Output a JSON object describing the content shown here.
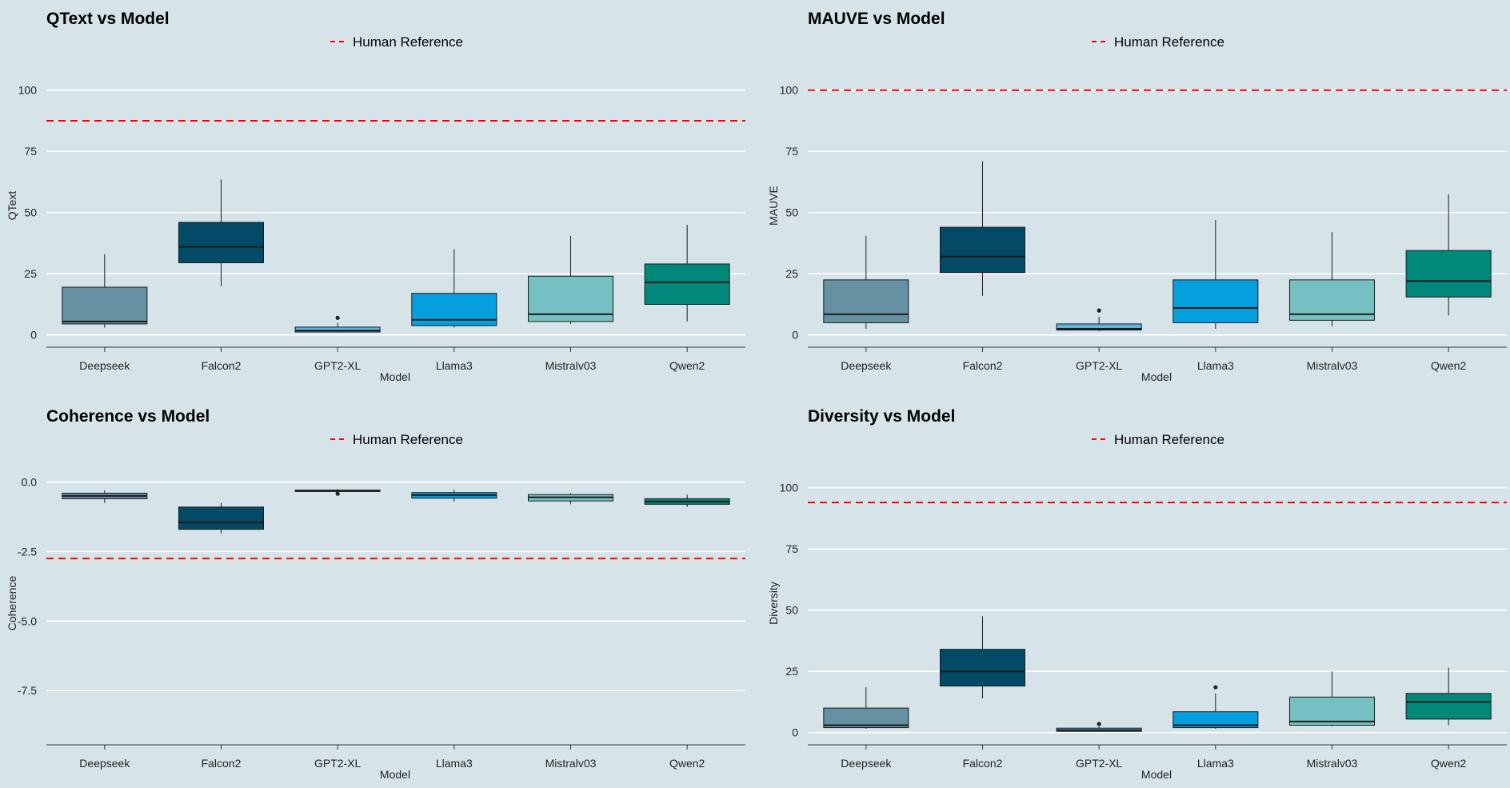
{
  "chart_data": [
    {
      "type": "box",
      "title": "QText vs Model",
      "xlabel": "Model",
      "ylabel": "QText",
      "legend": "Human Reference",
      "reference": 87.5,
      "yticks": [
        0,
        25,
        50,
        75,
        100
      ],
      "ytick_labels": [
        "0",
        "25",
        "50",
        "75",
        "100"
      ],
      "ylim": [
        -5,
        112
      ],
      "categories": [
        "Deepseek",
        "Falcon2",
        "GPT2-XL",
        "Llama3",
        "Mistralv03",
        "Qwen2"
      ],
      "boxes": [
        {
          "min": 3,
          "q1": 4.5,
          "median": 5.5,
          "q3": 19.5,
          "max": 33,
          "outliers": []
        },
        {
          "min": 20,
          "q1": 29.5,
          "median": 36,
          "q3": 46,
          "max": 63.5,
          "outliers": []
        },
        {
          "min": 1,
          "q1": 1.2,
          "median": 1.8,
          "q3": 3.2,
          "max": 5,
          "outliers": [
            7
          ]
        },
        {
          "min": 3,
          "q1": 3.8,
          "median": 6.2,
          "q3": 17,
          "max": 35,
          "outliers": []
        },
        {
          "min": 4.5,
          "q1": 5.5,
          "median": 8.5,
          "q3": 24,
          "max": 40.5,
          "outliers": []
        },
        {
          "min": 5.5,
          "q1": 12.5,
          "median": 21.5,
          "q3": 29,
          "max": 45,
          "outliers": []
        }
      ]
    },
    {
      "type": "box",
      "title": "MAUVE vs Model",
      "xlabel": "Model",
      "ylabel": "MAUVE",
      "legend": "Human Reference",
      "reference": 100,
      "yticks": [
        0,
        25,
        50,
        75,
        100
      ],
      "ytick_labels": [
        "0",
        "25",
        "50",
        "75",
        "100"
      ],
      "ylim": [
        -5,
        112
      ],
      "categories": [
        "Deepseek",
        "Falcon2",
        "GPT2-XL",
        "Llama3",
        "Mistralv03",
        "Qwen2"
      ],
      "boxes": [
        {
          "min": 2.5,
          "q1": 5,
          "median": 8.5,
          "q3": 22.5,
          "max": 40.5,
          "outliers": []
        },
        {
          "min": 16,
          "q1": 25.5,
          "median": 32,
          "q3": 44,
          "max": 71,
          "outliers": []
        },
        {
          "min": 1.5,
          "q1": 2,
          "median": 2.5,
          "q3": 4.5,
          "max": 7.5,
          "outliers": [
            10
          ]
        },
        {
          "min": 2.5,
          "q1": 5,
          "median": 11,
          "q3": 22.5,
          "max": 47,
          "outliers": []
        },
        {
          "min": 3.5,
          "q1": 6,
          "median": 8.5,
          "q3": 22.5,
          "max": 42,
          "outliers": []
        },
        {
          "min": 8,
          "q1": 15.5,
          "median": 22,
          "q3": 34.5,
          "max": 57.5,
          "outliers": []
        }
      ]
    },
    {
      "type": "box",
      "title": "Coherence vs Model",
      "xlabel": "Model",
      "ylabel": "Coherence",
      "legend": "Human Reference",
      "reference": -2.75,
      "yticks": [
        0,
        -2.5,
        -5,
        -7.5
      ],
      "ytick_labels": [
        "0.0",
        "-2.5",
        "-5.0",
        "-7.5"
      ],
      "ylim": [
        -9.45,
        0.85
      ],
      "categories": [
        "Deepseek",
        "Falcon2",
        "GPT2-XL",
        "Llama3",
        "Mistralv03",
        "Qwen2"
      ],
      "boxes": [
        {
          "min": -0.75,
          "q1": -0.6,
          "median": -0.5,
          "q3": -0.4,
          "max": -0.3,
          "outliers": []
        },
        {
          "min": -1.85,
          "q1": -1.7,
          "median": -1.45,
          "q3": -0.9,
          "max": -0.75,
          "outliers": []
        },
        {
          "min": -0.36,
          "q1": -0.34,
          "median": -0.32,
          "q3": -0.29,
          "max": -0.25,
          "outliers": [
            -0.42
          ]
        },
        {
          "min": -0.7,
          "q1": -0.58,
          "median": -0.47,
          "q3": -0.38,
          "max": -0.28,
          "outliers": []
        },
        {
          "min": -0.8,
          "q1": -0.68,
          "median": -0.55,
          "q3": -0.45,
          "max": -0.4,
          "outliers": []
        },
        {
          "min": -0.9,
          "q1": -0.8,
          "median": -0.7,
          "q3": -0.6,
          "max": -0.45,
          "outliers": []
        }
      ]
    },
    {
      "type": "box",
      "title": "Diversity vs Model",
      "xlabel": "Model",
      "ylabel": "Diversity",
      "legend": "Human Reference",
      "reference": 94,
      "yticks": [
        0,
        25,
        50,
        75,
        100
      ],
      "ytick_labels": [
        "0",
        "25",
        "50",
        "75",
        "100"
      ],
      "ylim": [
        -5,
        112
      ],
      "categories": [
        "Deepseek",
        "Falcon2",
        "GPT2-XL",
        "Llama3",
        "Mistralv03",
        "Qwen2"
      ],
      "boxes": [
        {
          "min": 1.5,
          "q1": 2,
          "median": 3,
          "q3": 10,
          "max": 18.5,
          "outliers": []
        },
        {
          "min": 14,
          "q1": 19,
          "median": 25,
          "q3": 34,
          "max": 47.5,
          "outliers": []
        },
        {
          "min": 0.3,
          "q1": 0.5,
          "median": 1,
          "q3": 1.8,
          "max": 2.5,
          "outliers": [
            3.5
          ]
        },
        {
          "min": 1.5,
          "q1": 2,
          "median": 3,
          "q3": 8.5,
          "max": 16,
          "outliers": [
            18.5
          ]
        },
        {
          "min": 2.5,
          "q1": 3,
          "median": 4.5,
          "q3": 14.5,
          "max": 25,
          "outliers": []
        },
        {
          "min": 3,
          "q1": 5.5,
          "median": 12.5,
          "q3": 16,
          "max": 26.5,
          "outliers": []
        }
      ]
    }
  ],
  "palette": {
    "Deepseek": "#6591a2",
    "Falcon2": "#024a66",
    "GPT2-XL": "#5ab8e0",
    "Llama3": "#069fde",
    "Mistralv03": "#75c1c2",
    "Qwen2": "#00887a"
  },
  "colors": {
    "background": "#d6e4ea",
    "grid": "#ffffff",
    "reference": "#ff0000",
    "stroke": "#1a1a1a"
  }
}
